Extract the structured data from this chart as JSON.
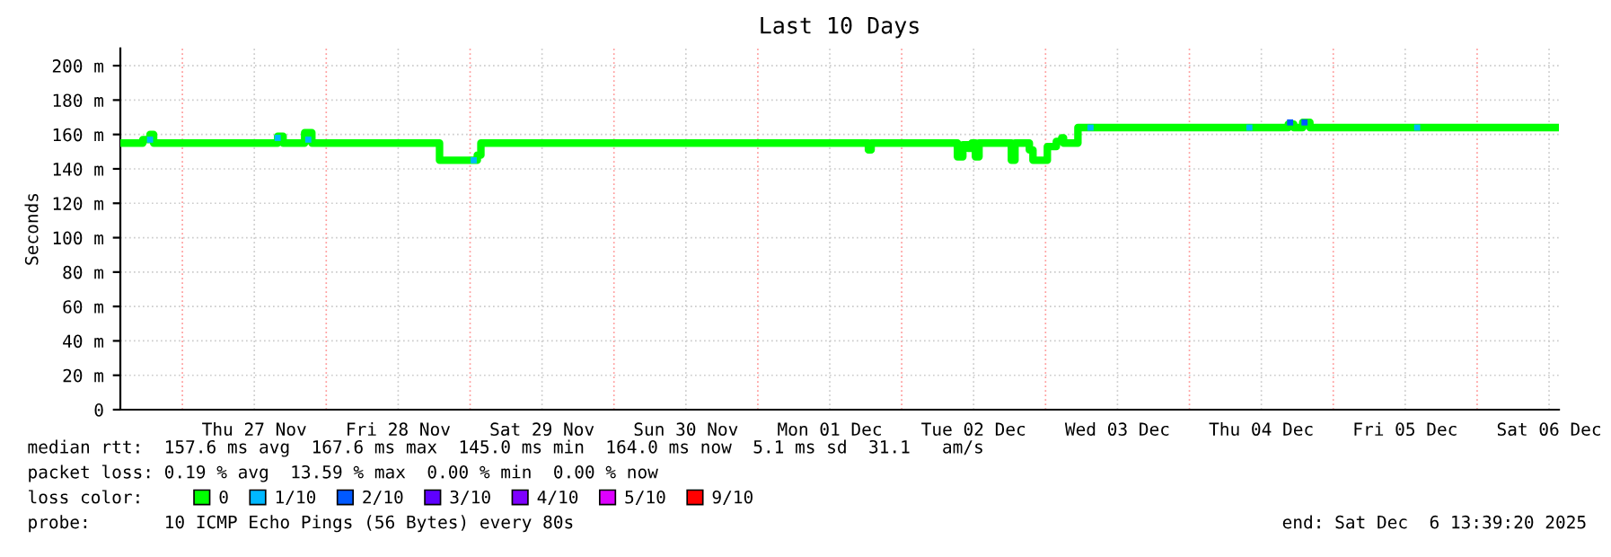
{
  "chart_data": {
    "type": "step",
    "title": "Last 10 Days",
    "ylabel": "Seconds",
    "legend_title": "loss color:",
    "xlim": [
      "2025-11-26T13:39",
      "2025-12-06T13:39"
    ],
    "xticks": [
      {
        "value": "2025-11-27",
        "label": null
      },
      {
        "value": "2025-11-27T12:00",
        "label": "Thu 27 Nov"
      },
      {
        "value": "2025-11-28",
        "label": null
      },
      {
        "value": "2025-11-28T12:00",
        "label": "Fri 28 Nov"
      },
      {
        "value": "2025-11-29",
        "label": null
      },
      {
        "value": "2025-11-29T12:00",
        "label": "Sat 29 Nov"
      },
      {
        "value": "2025-11-30",
        "label": null
      },
      {
        "value": "2025-11-30T12:00",
        "label": "Sun 30 Nov"
      },
      {
        "value": "2025-12-01",
        "label": null
      },
      {
        "value": "2025-12-01T12:00",
        "label": "Mon 01 Dec"
      },
      {
        "value": "2025-12-02",
        "label": null
      },
      {
        "value": "2025-12-02T12:00",
        "label": "Tue 02 Dec"
      },
      {
        "value": "2025-12-03",
        "label": null
      },
      {
        "value": "2025-12-03T12:00",
        "label": "Wed 03 Dec"
      },
      {
        "value": "2025-12-04",
        "label": null
      },
      {
        "value": "2025-12-04T12:00",
        "label": "Thu 04 Dec"
      },
      {
        "value": "2025-12-05",
        "label": null
      },
      {
        "value": "2025-12-05T12:00",
        "label": "Fri 05 Dec"
      },
      {
        "value": "2025-12-06",
        "label": null
      },
      {
        "value": "2025-12-06T12:00",
        "label": "Sat 06 Dec"
      }
    ],
    "ylim": [
      0,
      210
    ],
    "yticks": [
      0,
      {
        "value": 20,
        "label": "20 m"
      },
      {
        "value": 40,
        "label": "40 m"
      },
      {
        "value": 60,
        "label": "60 m"
      },
      {
        "value": 80,
        "label": "80 m"
      },
      {
        "value": 100,
        "label": "100 m"
      },
      {
        "value": 120,
        "label": "120 m"
      },
      {
        "value": 140,
        "label": "140 m"
      },
      {
        "value": 160,
        "label": "160 m"
      },
      {
        "value": 180,
        "label": "180 m"
      },
      {
        "value": 200,
        "label": "200 m"
      }
    ],
    "grid": true,
    "legend": "bottom",
    "series": [
      {
        "name": "0",
        "color": "#00ff00",
        "x": [
          "2025-11-26T14:00",
          "2025-11-26T17:24",
          "2025-11-26T18:36",
          "2025-11-26T19:12",
          "2025-11-27T15:54",
          "2025-11-27T16:48",
          "2025-11-27T20:24",
          "2025-11-27T21:36",
          "2025-11-28T18:36",
          "2025-11-28T18:54",
          "2025-11-29T00:36",
          "2025-11-29T01:12",
          "2025-11-29T01:48",
          "2025-12-01T18:00",
          "2025-12-01T18:27",
          "2025-12-01T18:54",
          "2025-12-02T09:00",
          "2025-12-02T09:18",
          "2025-12-02T10:12",
          "2025-12-02T11:06",
          "2025-12-02T11:42",
          "2025-12-02T12:18",
          "2025-12-02T12:54",
          "2025-12-02T17:42",
          "2025-12-02T18:18",
          "2025-12-02T18:54",
          "2025-12-02T20:24",
          "2025-12-02T21:18",
          "2025-12-02T21:54",
          "2025-12-03T00:00",
          "2025-12-03T00:18",
          "2025-12-03T01:48",
          "2025-12-03T02:42",
          "2025-12-03T03:00",
          "2025-12-03T05:06",
          "2025-12-03T05:24",
          "2025-12-04T15:54",
          "2025-12-04T16:30",
          "2025-12-04T17:24",
          "2025-12-04T18:54",
          "2025-12-04T20:06",
          "2025-12-06T13:30"
        ],
        "values": [
          155,
          157,
          160,
          155,
          159,
          155,
          161,
          155,
          155,
          145,
          145,
          148,
          155,
          155,
          151,
          155,
          155,
          147,
          154,
          152,
          155,
          147,
          155,
          155,
          145,
          155,
          155,
          151,
          145,
          145,
          153,
          156,
          158,
          155,
          155,
          164,
          164,
          166,
          164,
          167,
          164,
          164
        ]
      },
      {
        "name": "1/10",
        "color": "#00b8ff",
        "type": "scatter",
        "x": [
          "2025-11-26T18:36",
          "2025-11-27T15:54",
          "2025-11-27T21:00",
          "2025-11-29T00:36",
          "2025-12-03T07:30",
          "2025-12-04T10:00",
          "2025-12-05T14:00"
        ],
        "values": [
          157,
          158,
          157,
          145,
          164,
          164,
          164
        ]
      },
      {
        "name": "2/10",
        "color": "#0059ff",
        "type": "scatter",
        "x": [
          "2025-12-04T16:48",
          "2025-12-04T19:12"
        ],
        "values": [
          167,
          167
        ]
      },
      {
        "name": "3/10",
        "color": "#5e00ff",
        "type": "scatter"
      },
      {
        "name": "4/10",
        "color": "#7e00ff",
        "type": "scatter"
      },
      {
        "name": "5/10",
        "color": "#dd00ff",
        "type": "scatter"
      },
      {
        "name": "9/10",
        "color": "#ff0000",
        "type": "scatter"
      }
    ],
    "annotations": [
      "median rtt:  157.6 ms avg  167.6 ms max  145.0 ms min  164.0 ms now  5.1 ms sd  31.1   am/s",
      "packet loss: 0.19 % avg  13.59 % max  0.00 % min  0.00 % now",
      "probe:       10 ICMP Echo Pings (56 Bytes) every 80s",
      "end: Sat Dec  6 13:39:20 2025"
    ]
  }
}
